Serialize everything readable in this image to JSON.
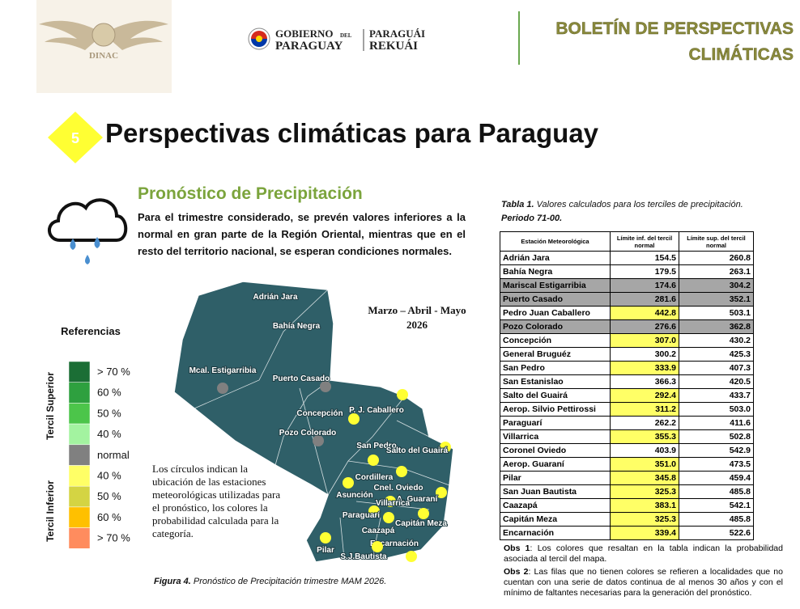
{
  "header": {
    "agency": "DINAC",
    "gov_logo": {
      "gobierno": "GOBIERNO",
      "del": "DEL",
      "paraguay": "PARAGUAY",
      "paraguai": "PARAGUÁI",
      "rekuai": "REKUÁI"
    },
    "bulletin_title": [
      "BOLETÍN DE PERSPECTIVAS",
      "CLIMÁTICAS"
    ]
  },
  "section": {
    "number": "5",
    "title": "Perspectivas climáticas para Paraguay"
  },
  "forecast": {
    "title": "Pronóstico de Precipitación",
    "text": "Para el trimestre considerado, se prevén valores inferiores a la normal en gran parte de la Región Oriental, mientras que en el resto del territorio nacional, se esperan condiciones normales."
  },
  "legend": {
    "title": "Referencias",
    "upper_label": "Tercil Superior",
    "lower_label": "Tercil Inferior",
    "items": [
      {
        "label": "> 70 %",
        "color": "#1b6e35"
      },
      {
        "label": "60 %",
        "color": "#2ea03f"
      },
      {
        "label": "50 %",
        "color": "#4cc54a"
      },
      {
        "label": "40 %",
        "color": "#a3f3a0"
      },
      {
        "label": "normal",
        "color": "#808080"
      },
      {
        "label": "40 %",
        "color": "#ffff66"
      },
      {
        "label": "50 %",
        "color": "#d4d443"
      },
      {
        "label": "60 %",
        "color": "#ffc000"
      },
      {
        "label": "> 70 %",
        "color": "#ff8c5e"
      }
    ]
  },
  "map": {
    "period": [
      "Marzo – Abril - Mayo",
      "2026"
    ],
    "note": "Los círculos indican la ubicación de las estaciones meteorológicas utilizadas para el pronóstico, los colores la probabilidad calculada para la categoría.",
    "stations": [
      {
        "label": "Adrián Jara"
      },
      {
        "label": "Bahía Negra"
      },
      {
        "label": "Mcal. Estigarribia",
        "color": "#808080"
      },
      {
        "label": "Puerto Casado",
        "color": "#808080"
      },
      {
        "label": "Concepción",
        "color": "#ffff33"
      },
      {
        "label": "P. J. Caballero",
        "color": "#ffff33"
      },
      {
        "label": "Pozo Colorado",
        "color": "#808080"
      },
      {
        "label": "San Pedro",
        "color": "#ffff33"
      },
      {
        "label": "Salto del Guairá",
        "color": "#ffff33"
      },
      {
        "label": "Cordillera"
      },
      {
        "label": "Asunción",
        "color": "#ffff33"
      },
      {
        "label": "Cnel. Oviedo",
        "color": "#ffff33"
      },
      {
        "label": "A. Guaraní",
        "color": "#ffff33"
      },
      {
        "label": "Villarrica",
        "color": "#ffff33"
      },
      {
        "label": "Paraguarí",
        "color": "#ffff33"
      },
      {
        "label": "Caazapá",
        "color": "#ffff33"
      },
      {
        "label": "Capitán Meza",
        "color": "#ffff33"
      },
      {
        "label": "Encarnación",
        "color": "#ffff33"
      },
      {
        "label": "Pilar",
        "color": "#ffff33"
      },
      {
        "label": "S.J.Bautista",
        "color": "#ffff33"
      }
    ]
  },
  "figure_caption": {
    "label": "Figura 4.",
    "text": " Pronóstico de Precipitación trimestre MAM 2026."
  },
  "table": {
    "caption": {
      "label": "Tabla 1.",
      "text": " Valores calculados para los terciles de precipitación.",
      "period": "Periodo 71-00."
    },
    "columns": [
      "Estación Meteorológica",
      "Límite inf. del tercil normal",
      "Límite sup. del tercil normal"
    ],
    "rows": [
      {
        "cells": [
          "Adrián Jara",
          "154.5",
          "260.8"
        ],
        "colors": [
          "#ffffff",
          "#ffffff",
          "#ffffff"
        ]
      },
      {
        "cells": [
          "Bahía Negra",
          "179.5",
          "263.1"
        ],
        "colors": [
          "#ffffff",
          "#ffffff",
          "#ffffff"
        ]
      },
      {
        "cells": [
          "Mariscal Estigarribia",
          "174.6",
          "304.2"
        ],
        "colors": [
          "#a6a6a6",
          "#a6a6a6",
          "#a6a6a6"
        ]
      },
      {
        "cells": [
          "Puerto Casado",
          "281.6",
          "352.1"
        ],
        "colors": [
          "#a6a6a6",
          "#a6a6a6",
          "#a6a6a6"
        ]
      },
      {
        "cells": [
          "Pedro Juan Caballero",
          "442.8",
          "503.1"
        ],
        "colors": [
          "#ffffff",
          "#ffff66",
          "#ffffff"
        ]
      },
      {
        "cells": [
          "Pozo Colorado",
          "276.6",
          "362.8"
        ],
        "colors": [
          "#a6a6a6",
          "#a6a6a6",
          "#a6a6a6"
        ]
      },
      {
        "cells": [
          "Concepción",
          "307.0",
          "430.2"
        ],
        "colors": [
          "#ffffff",
          "#ffff66",
          "#ffffff"
        ]
      },
      {
        "cells": [
          "General Bruguéz",
          "300.2",
          "425.3"
        ],
        "colors": [
          "#ffffff",
          "#ffffff",
          "#ffffff"
        ]
      },
      {
        "cells": [
          "San Pedro",
          "333.9",
          "407.3"
        ],
        "colors": [
          "#ffffff",
          "#ffff66",
          "#ffffff"
        ]
      },
      {
        "cells": [
          "San Estanislao",
          "366.3",
          "420.5"
        ],
        "colors": [
          "#ffffff",
          "#ffffff",
          "#ffffff"
        ]
      },
      {
        "cells": [
          "Salto del Guairá",
          "292.4",
          "433.7"
        ],
        "colors": [
          "#ffffff",
          "#ffff66",
          "#ffffff"
        ]
      },
      {
        "cells": [
          "Aerop. Silvio Pettirossi",
          "311.2",
          "503.0"
        ],
        "colors": [
          "#ffffff",
          "#ffff66",
          "#ffffff"
        ]
      },
      {
        "cells": [
          "Paraguarí",
          "262.2",
          "411.6"
        ],
        "colors": [
          "#ffffff",
          "#ffffff",
          "#ffffff"
        ]
      },
      {
        "cells": [
          "Villarrica",
          "355.3",
          "502.8"
        ],
        "colors": [
          "#ffffff",
          "#ffff66",
          "#ffffff"
        ]
      },
      {
        "cells": [
          "Coronel Oviedo",
          "403.9",
          "542.9"
        ],
        "colors": [
          "#ffffff",
          "#ffffff",
          "#ffffff"
        ]
      },
      {
        "cells": [
          "Aerop. Guaraní",
          "351.0",
          "473.5"
        ],
        "colors": [
          "#ffffff",
          "#ffff66",
          "#ffffff"
        ]
      },
      {
        "cells": [
          "Pilar",
          "345.8",
          "459.4"
        ],
        "colors": [
          "#ffffff",
          "#ffff66",
          "#ffffff"
        ]
      },
      {
        "cells": [
          "San Juan Bautista",
          "325.3",
          "485.8"
        ],
        "colors": [
          "#ffffff",
          "#ffff66",
          "#ffffff"
        ]
      },
      {
        "cells": [
          "Caazapá",
          "383.1",
          "542.1"
        ],
        "colors": [
          "#ffffff",
          "#ffff66",
          "#ffffff"
        ]
      },
      {
        "cells": [
          "Capitán Meza",
          "325.3",
          "485.8"
        ],
        "colors": [
          "#ffffff",
          "#ffff66",
          "#ffffff"
        ]
      },
      {
        "cells": [
          "Encarnación",
          "339.4",
          "522.6"
        ],
        "colors": [
          "#ffffff",
          "#ffff66",
          "#ffffff"
        ]
      }
    ],
    "notes": [
      {
        "label": "Obs 1",
        "text": ": Los colores que resaltan en la tabla indican la probabilidad asociada al tercil del mapa."
      },
      {
        "label": "Obs 2",
        "text": ": Las filas que no tienen colores se refieren a localidades que no cuentan con una serie de datos continua de al menos 30 años y con el mínimo de faltantes necesarias para la generación del pronóstico."
      }
    ]
  }
}
